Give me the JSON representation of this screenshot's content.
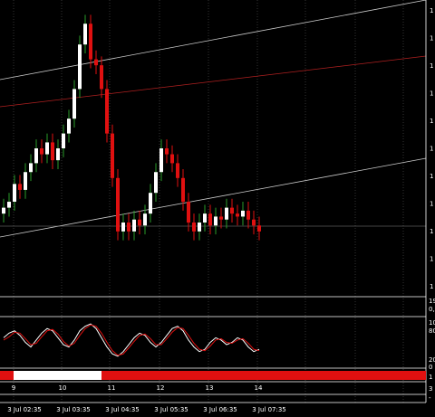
{
  "chart_data": {
    "type": "candlestick",
    "ylim": [
      0,
      100
    ],
    "open": [
      28,
      30,
      32,
      38,
      36,
      42,
      45,
      50,
      48,
      52,
      46,
      50,
      55,
      60,
      70,
      85,
      92,
      80,
      78,
      70,
      55,
      40,
      22,
      25,
      22,
      26,
      24,
      28,
      35,
      42,
      50,
      48,
      45,
      40,
      32,
      25,
      22,
      25,
      28,
      24,
      27,
      26,
      30,
      28,
      27,
      29,
      26,
      24
    ],
    "high": [
      33,
      35,
      41,
      41,
      45,
      48,
      53,
      53,
      55,
      55,
      53,
      58,
      63,
      73,
      88,
      95,
      95,
      83,
      81,
      73,
      58,
      43,
      28,
      28,
      29,
      29,
      31,
      38,
      45,
      53,
      53,
      51,
      48,
      43,
      35,
      28,
      28,
      31,
      31,
      30,
      30,
      33,
      33,
      31,
      32,
      32,
      29,
      27
    ],
    "low": [
      25,
      27,
      29,
      33,
      33,
      39,
      42,
      45,
      45,
      43,
      43,
      47,
      52,
      57,
      67,
      82,
      77,
      75,
      67,
      52,
      37,
      19,
      19,
      19,
      19,
      21,
      21,
      25,
      32,
      39,
      45,
      42,
      37,
      29,
      22,
      19,
      19,
      22,
      21,
      21,
      23,
      23,
      25,
      24,
      24,
      23,
      21,
      19
    ],
    "close": [
      30,
      32,
      38,
      36,
      42,
      45,
      50,
      48,
      52,
      46,
      50,
      55,
      60,
      70,
      85,
      92,
      80,
      78,
      70,
      55,
      40,
      22,
      25,
      22,
      26,
      24,
      28,
      35,
      42,
      50,
      48,
      45,
      40,
      32,
      25,
      22,
      25,
      28,
      24,
      27,
      26,
      30,
      28,
      27,
      29,
      26,
      24,
      22
    ],
    "up_color": "#ffffff",
    "down_color": "#e01010",
    "price_labels": [
      "1",
      "1",
      "1",
      "1",
      "1",
      "1",
      "1",
      "1",
      "1",
      "1",
      "1"
    ],
    "day_labels": [
      "9",
      "10",
      "11",
      "12",
      "13",
      "14"
    ],
    "time_labels": [
      "3 Jul 02:35",
      "3 Jul 03:35",
      "3 Jul 04:35",
      "3 Jul 05:35",
      "3 Jul 06:35",
      "3 Jul 07:35"
    ],
    "panel_labels": [
      "19",
      "0,",
      "10",
      "80",
      "20",
      "0",
      "1",
      "3",
      "-"
    ],
    "stochastic": {
      "ylim": [
        0,
        100
      ],
      "series": [
        {
          "color": "#ffffff",
          "values": [
            60,
            70,
            75,
            65,
            50,
            40,
            55,
            70,
            80,
            75,
            60,
            45,
            40,
            55,
            75,
            85,
            90,
            80,
            60,
            40,
            25,
            20,
            30,
            45,
            60,
            70,
            65,
            50,
            40,
            50,
            65,
            80,
            85,
            75,
            55,
            40,
            30,
            35,
            50,
            60,
            55,
            45,
            50,
            60,
            55,
            40,
            30,
            35
          ]
        },
        {
          "color": "#e01010",
          "values": [
            55,
            62,
            72,
            70,
            58,
            45,
            48,
            62,
            75,
            78,
            68,
            52,
            42,
            48,
            65,
            80,
            88,
            85,
            70,
            50,
            32,
            22,
            25,
            38,
            52,
            65,
            68,
            58,
            45,
            45,
            58,
            72,
            82,
            80,
            65,
            48,
            35,
            32,
            42,
            55,
            58,
            50,
            48,
            55,
            58,
            48,
            35,
            32
          ]
        }
      ]
    }
  }
}
